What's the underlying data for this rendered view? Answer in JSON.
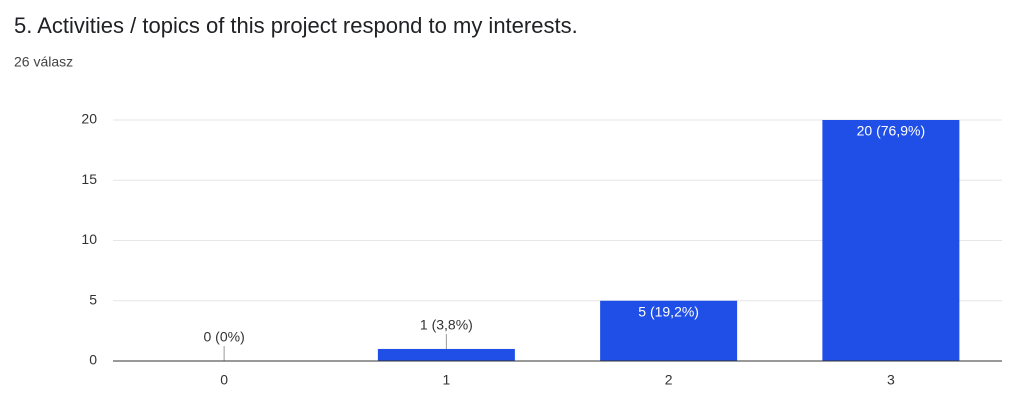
{
  "chart_data": {
    "type": "bar",
    "title": "5. Activities / topics of this project respond to my interests.",
    "subtitle": "26 válasz",
    "categories": [
      "0",
      "1",
      "2",
      "3"
    ],
    "values": [
      0,
      1,
      5,
      20
    ],
    "value_labels": [
      "0 (0%)",
      "1 (3,8%)",
      "5 (19,2%)",
      "20 (76,9%)"
    ],
    "color": "#1f4fe6",
    "ylim": [
      0,
      20
    ],
    "yticks": [
      0,
      5,
      10,
      15,
      20
    ],
    "grid": true
  }
}
